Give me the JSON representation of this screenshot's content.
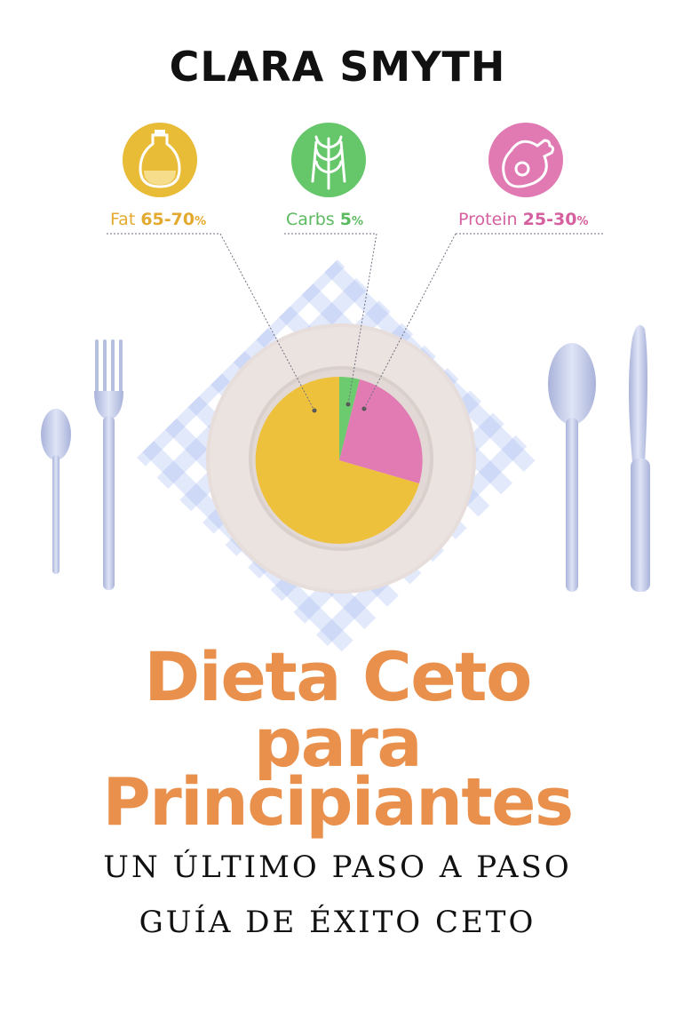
{
  "author": "CLARA SMYTH",
  "macros": [
    {
      "name": "Fat",
      "value": "65-70",
      "unit": "%",
      "color": "#e9bc37",
      "icon": "oil-jug-icon"
    },
    {
      "name": "Carbs",
      "value": "5",
      "unit": "%",
      "color": "#66c66a",
      "icon": "wheat-icon"
    },
    {
      "name": "Protein",
      "value": "25-30",
      "unit": "%",
      "color": "#e17ab3",
      "icon": "ham-leg-icon"
    }
  ],
  "title": {
    "line1": "Dieta Ceto",
    "line2": "para",
    "line3": "Principiantes"
  },
  "subtitle": {
    "line1": "UN ÚLTIMO PASO A PASO",
    "line2": "GUÍA DE ÉXITO CETO"
  },
  "colors": {
    "title": "#e8904c",
    "fat_text": "#e4aa2f",
    "carbs_text": "#5cba60",
    "protein_text": "#d6609f",
    "cutlery": "#b6bfe0",
    "plate": "#e7dedb"
  }
}
